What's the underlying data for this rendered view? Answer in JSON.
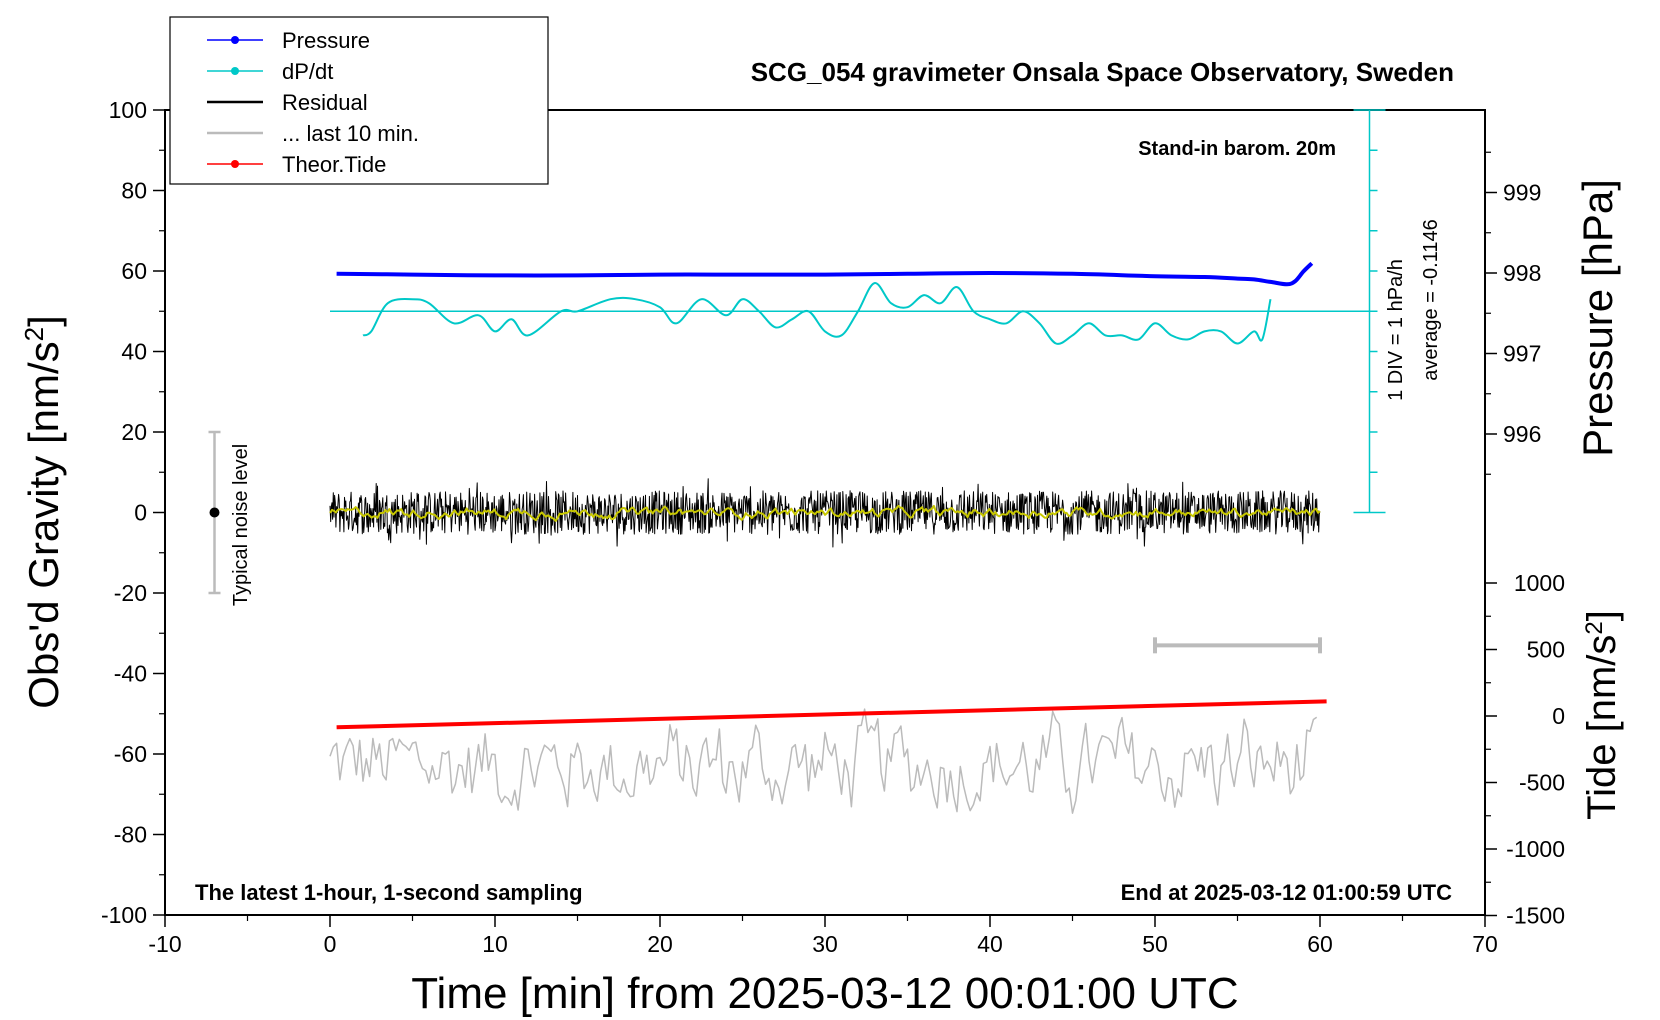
{
  "chart_data": {
    "type": "line",
    "title": "SCG_054 gravimeter Onsala Space Observatory, Sweden",
    "subtitle_top_right": "Stand-in barom. 20m",
    "footer_left": "The latest 1-hour, 1-second sampling",
    "footer_right": "End at 2025-03-12 01:00:59 UTC",
    "xlabel": "Time [min] from 2025-03-12 00:01:00 UTC",
    "ylabel_left": "Obs'd Gravity [nm/s",
    "ylabel_left_sup": "2",
    "ylabel_left_close": "]",
    "ylabel_right_pressure": "Pressure [hPa]",
    "ylabel_right_tide": "Tide [nm/s",
    "ylabel_right_tide_sup": "2",
    "ylabel_right_tide_close": "]",
    "xlim": [
      -10,
      70
    ],
    "ylim_left": [
      -100,
      100
    ],
    "x_ticks": [
      "-10",
      "0",
      "10",
      "20",
      "30",
      "40",
      "50",
      "60",
      "70"
    ],
    "y_left_ticks": [
      "100",
      "80",
      "60",
      "40",
      "20",
      "0",
      "-20",
      "-40",
      "-60",
      "-80",
      "-100"
    ],
    "pressure_axis": {
      "range_hPa": [
        995.0,
        1000.0
      ],
      "ticks": [
        "996",
        "997",
        "998",
        "999"
      ]
    },
    "tide_axis": {
      "range": [
        -1500,
        1000
      ],
      "ticks": [
        "1000",
        "500",
        "0",
        "-500",
        "-1000",
        "-1500"
      ]
    },
    "noise_bar": {
      "label": "Typical noise level",
      "x": -7,
      "center": 0,
      "range": [
        -20,
        20
      ]
    },
    "dpdt_scale": {
      "label1": "1 DIV = 1 hPa/h",
      "label2": "average = -0.1146",
      "x": 63,
      "baseline_gravity": 50,
      "zero_gravity": 0,
      "top_gravity": 100
    },
    "last10_marker": {
      "x_start": 50,
      "x_end": 60,
      "gravity": -33
    },
    "legend": [
      {
        "label": "Pressure",
        "color": "#0000ff",
        "style": "line-dot"
      },
      {
        "label": "dP/dt",
        "color": "#00c8c8",
        "style": "line-dot"
      },
      {
        "label": "Residual",
        "color": "#000000",
        "style": "line"
      },
      {
        "label": "... last 10 min.",
        "color": "#bbbbbb",
        "style": "line"
      },
      {
        "label": "Theor.Tide",
        "color": "#ff0000",
        "style": "line-dot"
      }
    ],
    "series": [
      {
        "name": "Pressure",
        "unit": "hPa",
        "color": "#0000ff",
        "x": [
          0.4,
          5,
          10,
          15,
          20,
          25,
          30,
          35,
          40,
          45,
          50,
          53,
          55,
          56,
          57,
          58,
          58.5,
          59,
          59.5
        ],
        "values": [
          997.99,
          997.98,
          997.97,
          997.97,
          997.98,
          997.98,
          997.98,
          997.99,
          998.0,
          997.99,
          997.96,
          997.95,
          997.93,
          997.92,
          997.89,
          997.86,
          997.9,
          998.02,
          998.12
        ]
      },
      {
        "name": "dP/dt",
        "unit": "gravity-axis units",
        "color": "#00c8c8",
        "x": [
          2,
          2.5,
          3.5,
          5,
          6,
          7.5,
          9,
          10,
          11,
          12,
          14,
          15,
          17,
          18.5,
          20,
          21,
          22.5,
          24,
          25,
          26,
          27,
          28,
          29,
          30,
          31,
          32,
          33,
          34,
          35,
          36,
          37,
          38,
          39,
          40,
          41,
          42,
          43,
          44,
          45,
          46,
          47,
          48,
          49,
          50,
          51,
          52,
          53,
          54,
          55,
          56,
          56.5,
          57
        ],
        "values": [
          44,
          45,
          52,
          53,
          52,
          47,
          49,
          45,
          48,
          44,
          50,
          50,
          53,
          53,
          51,
          47,
          53,
          49,
          53,
          50,
          46,
          48,
          50,
          45,
          44,
          50,
          57,
          52,
          51,
          54,
          52,
          56,
          50,
          48,
          47,
          50,
          47,
          42,
          44,
          47,
          44,
          44,
          43,
          47,
          44,
          43,
          45,
          45,
          42,
          45,
          43,
          53
        ]
      },
      {
        "name": "Residual",
        "unit": "nm/s2",
        "color": "#000000",
        "x_range": [
          0,
          60
        ],
        "center": 0,
        "amplitude": 9
      },
      {
        "name": "Residual (smoothed)",
        "unit": "nm/s2",
        "color": "#c8c800",
        "x_range": [
          0,
          60
        ],
        "center": 0,
        "amplitude": 1.5
      },
      {
        "name": "... last 10 min.",
        "unit": "nm/s2",
        "color": "#bbbbbb",
        "x_range": [
          0,
          60
        ],
        "center": -63,
        "amplitude": 11
      },
      {
        "name": "Theor.Tide",
        "unit": "nm/s2",
        "color": "#ff0000",
        "x": [
          0.4,
          60.4
        ],
        "values": [
          -85,
          110
        ]
      }
    ]
  }
}
